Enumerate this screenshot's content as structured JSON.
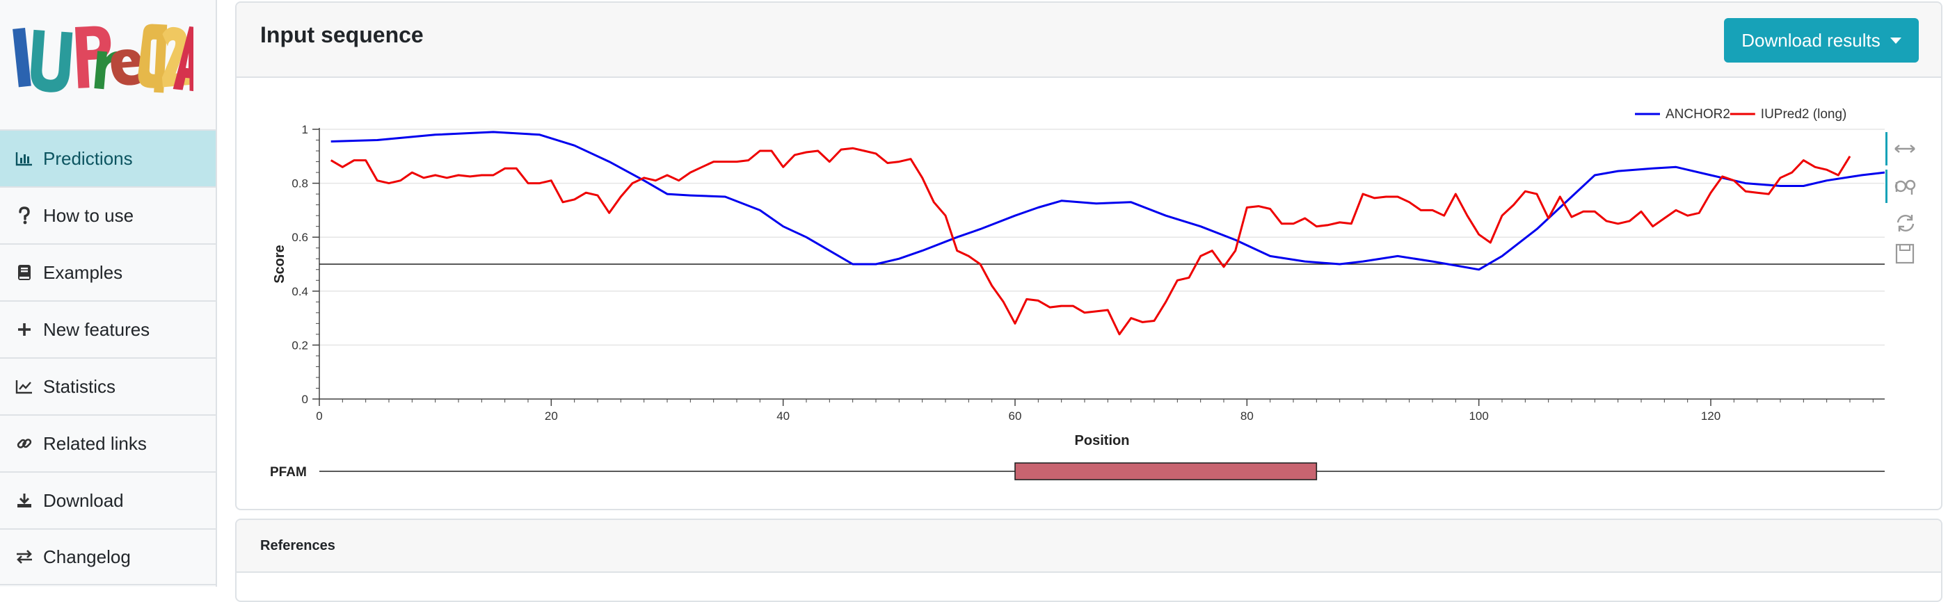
{
  "logo": {
    "text": "IUPred2A"
  },
  "sidebar": {
    "items": [
      {
        "label": "Predictions",
        "icon": "bar-chart-icon",
        "active": true
      },
      {
        "label": "How to use",
        "icon": "question-icon",
        "active": false
      },
      {
        "label": "Examples",
        "icon": "book-icon",
        "active": false
      },
      {
        "label": "New features",
        "icon": "plus-icon",
        "active": false
      },
      {
        "label": "Statistics",
        "icon": "line-chart-icon",
        "active": false
      },
      {
        "label": "Related links",
        "icon": "link-icon",
        "active": false
      },
      {
        "label": "Download",
        "icon": "download-icon",
        "active": false
      },
      {
        "label": "Changelog",
        "icon": "exchange-icon",
        "active": false
      }
    ]
  },
  "main": {
    "title": "Input sequence",
    "download_button": "Download results"
  },
  "references": {
    "title": "References"
  },
  "colors": {
    "accent": "#17a2b8",
    "active_nav": "#bee5eb",
    "anchor": "#0000ee",
    "iupred": "#ee0000",
    "pfam": "#c86470"
  },
  "chart_data": {
    "type": "line",
    "xlabel": "Position",
    "ylabel": "Score",
    "xlim": [
      0,
      135
    ],
    "ylim": [
      0,
      1
    ],
    "x_ticks": [
      0,
      20,
      40,
      60,
      80,
      100,
      120
    ],
    "y_ticks": [
      0,
      0.2,
      0.4,
      0.6,
      0.8,
      1
    ],
    "y_tick_labels": [
      "0",
      "0.2",
      "0.4",
      "0.6",
      "0.8",
      "1"
    ],
    "threshold": 0.5,
    "legend_position": "top-right",
    "series": [
      {
        "name": "ANCHOR2",
        "color": "#0000ee",
        "points": [
          [
            1,
            0.955
          ],
          [
            5,
            0.96
          ],
          [
            10,
            0.98
          ],
          [
            15,
            0.99
          ],
          [
            19,
            0.98
          ],
          [
            22,
            0.94
          ],
          [
            25,
            0.88
          ],
          [
            28,
            0.81
          ],
          [
            30,
            0.76
          ],
          [
            32,
            0.755
          ],
          [
            35,
            0.75
          ],
          [
            38,
            0.7
          ],
          [
            40,
            0.64
          ],
          [
            42,
            0.6
          ],
          [
            44,
            0.55
          ],
          [
            46,
            0.5
          ],
          [
            48,
            0.5
          ],
          [
            50,
            0.52
          ],
          [
            52,
            0.55
          ],
          [
            55,
            0.6
          ],
          [
            57,
            0.63
          ],
          [
            60,
            0.68
          ],
          [
            62,
            0.71
          ],
          [
            64,
            0.735
          ],
          [
            67,
            0.725
          ],
          [
            70,
            0.73
          ],
          [
            73,
            0.68
          ],
          [
            76,
            0.64
          ],
          [
            79,
            0.59
          ],
          [
            82,
            0.53
          ],
          [
            85,
            0.51
          ],
          [
            88,
            0.5
          ],
          [
            90,
            0.51
          ],
          [
            93,
            0.53
          ],
          [
            96,
            0.51
          ],
          [
            100,
            0.48
          ],
          [
            102,
            0.53
          ],
          [
            105,
            0.63
          ],
          [
            108,
            0.75
          ],
          [
            110,
            0.83
          ],
          [
            112,
            0.845
          ],
          [
            115,
            0.855
          ],
          [
            117,
            0.86
          ],
          [
            120,
            0.83
          ],
          [
            123,
            0.8
          ],
          [
            126,
            0.79
          ],
          [
            128,
            0.79
          ],
          [
            130,
            0.81
          ],
          [
            133,
            0.83
          ],
          [
            135,
            0.84
          ]
        ]
      },
      {
        "name": "IUPred2 (long)",
        "color": "#ee0000",
        "points": [
          [
            1,
            0.885
          ],
          [
            2,
            0.86
          ],
          [
            3,
            0.885
          ],
          [
            4,
            0.885
          ],
          [
            5,
            0.81
          ],
          [
            6,
            0.8
          ],
          [
            7,
            0.81
          ],
          [
            8,
            0.84
          ],
          [
            9,
            0.82
          ],
          [
            10,
            0.83
          ],
          [
            11,
            0.82
          ],
          [
            12,
            0.83
          ],
          [
            13,
            0.825
          ],
          [
            14,
            0.83
          ],
          [
            15,
            0.83
          ],
          [
            16,
            0.855
          ],
          [
            17,
            0.855
          ],
          [
            18,
            0.8
          ],
          [
            19,
            0.8
          ],
          [
            20,
            0.81
          ],
          [
            21,
            0.73
          ],
          [
            22,
            0.74
          ],
          [
            23,
            0.765
          ],
          [
            24,
            0.755
          ],
          [
            25,
            0.69
          ],
          [
            26,
            0.75
          ],
          [
            27,
            0.8
          ],
          [
            28,
            0.82
          ],
          [
            29,
            0.81
          ],
          [
            30,
            0.83
          ],
          [
            31,
            0.81
          ],
          [
            32,
            0.84
          ],
          [
            33,
            0.86
          ],
          [
            34,
            0.88
          ],
          [
            35,
            0.88
          ],
          [
            36,
            0.88
          ],
          [
            37,
            0.885
          ],
          [
            38,
            0.92
          ],
          [
            39,
            0.92
          ],
          [
            40,
            0.86
          ],
          [
            41,
            0.905
          ],
          [
            42,
            0.915
          ],
          [
            43,
            0.92
          ],
          [
            44,
            0.88
          ],
          [
            45,
            0.925
          ],
          [
            46,
            0.93
          ],
          [
            47,
            0.92
          ],
          [
            48,
            0.91
          ],
          [
            49,
            0.875
          ],
          [
            50,
            0.88
          ],
          [
            51,
            0.89
          ],
          [
            52,
            0.82
          ],
          [
            53,
            0.73
          ],
          [
            54,
            0.68
          ],
          [
            55,
            0.55
          ],
          [
            56,
            0.53
          ],
          [
            57,
            0.5
          ],
          [
            58,
            0.42
          ],
          [
            59,
            0.36
          ],
          [
            60,
            0.28
          ],
          [
            61,
            0.37
          ],
          [
            62,
            0.365
          ],
          [
            63,
            0.34
          ],
          [
            64,
            0.345
          ],
          [
            65,
            0.345
          ],
          [
            66,
            0.32
          ],
          [
            67,
            0.325
          ],
          [
            68,
            0.33
          ],
          [
            69,
            0.24
          ],
          [
            70,
            0.3
          ],
          [
            71,
            0.285
          ],
          [
            72,
            0.29
          ],
          [
            73,
            0.36
          ],
          [
            74,
            0.44
          ],
          [
            75,
            0.45
          ],
          [
            76,
            0.53
          ],
          [
            77,
            0.55
          ],
          [
            78,
            0.49
          ],
          [
            79,
            0.55
          ],
          [
            80,
            0.71
          ],
          [
            81,
            0.715
          ],
          [
            82,
            0.705
          ],
          [
            83,
            0.65
          ],
          [
            84,
            0.65
          ],
          [
            85,
            0.67
          ],
          [
            86,
            0.64
          ],
          [
            87,
            0.645
          ],
          [
            88,
            0.655
          ],
          [
            89,
            0.65
          ],
          [
            90,
            0.76
          ],
          [
            91,
            0.745
          ],
          [
            92,
            0.75
          ],
          [
            93,
            0.75
          ],
          [
            94,
            0.73
          ],
          [
            95,
            0.7
          ],
          [
            96,
            0.7
          ],
          [
            97,
            0.68
          ],
          [
            98,
            0.76
          ],
          [
            99,
            0.68
          ],
          [
            100,
            0.61
          ],
          [
            101,
            0.58
          ],
          [
            102,
            0.68
          ],
          [
            103,
            0.72
          ],
          [
            104,
            0.77
          ],
          [
            105,
            0.76
          ],
          [
            106,
            0.67
          ],
          [
            107,
            0.75
          ],
          [
            108,
            0.675
          ],
          [
            109,
            0.695
          ],
          [
            110,
            0.695
          ],
          [
            111,
            0.66
          ],
          [
            112,
            0.65
          ],
          [
            113,
            0.66
          ],
          [
            114,
            0.695
          ],
          [
            115,
            0.64
          ],
          [
            116,
            0.67
          ],
          [
            117,
            0.7
          ],
          [
            118,
            0.68
          ],
          [
            119,
            0.69
          ],
          [
            120,
            0.765
          ],
          [
            121,
            0.825
          ],
          [
            122,
            0.81
          ],
          [
            123,
            0.77
          ],
          [
            124,
            0.765
          ],
          [
            125,
            0.76
          ],
          [
            126,
            0.82
          ],
          [
            127,
            0.84
          ],
          [
            128,
            0.885
          ],
          [
            129,
            0.86
          ],
          [
            130,
            0.85
          ],
          [
            131,
            0.83
          ],
          [
            132,
            0.9
          ]
        ]
      }
    ],
    "pfam": {
      "label": "PFAM",
      "domain_start": 60,
      "domain_end": 86
    }
  }
}
